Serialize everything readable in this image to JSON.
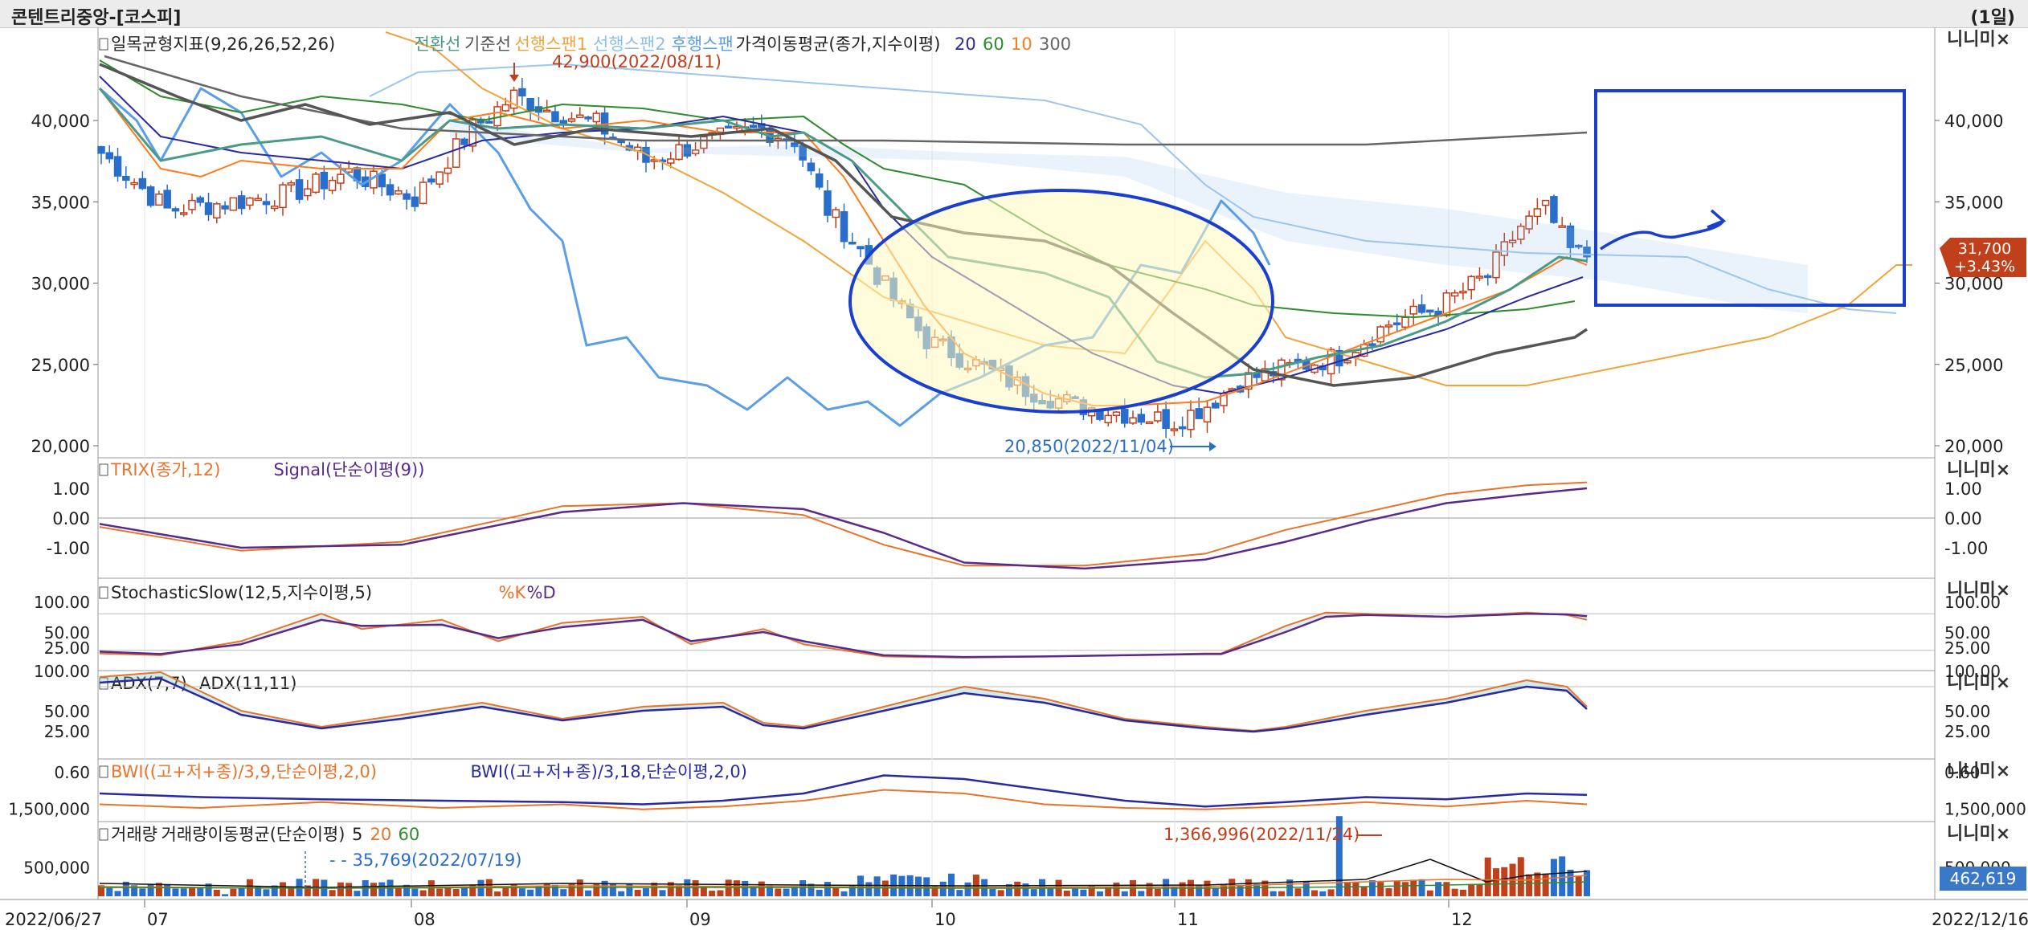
{
  "window": {
    "title": "콘텐트리중앙-[코스피]",
    "period": "(1일)"
  },
  "dates": {
    "start": "2022/06/27",
    "end": "2022/12/16",
    "months": [
      "07",
      "08",
      "09",
      "10",
      "11",
      "12"
    ]
  },
  "panel_controls": "니니미×",
  "price_panel": {
    "legend": [
      {
        "text": "일목균형지표(9,26,26,52,26)",
        "color": "#222222"
      },
      {
        "text": "전환선",
        "color": "#4a9a8a"
      },
      {
        "text": "기준선",
        "color": "#555555"
      },
      {
        "text": "선행스팬1",
        "color": "#f3a33a"
      },
      {
        "text": "선행스팬2",
        "color": "#8fbfe8"
      },
      {
        "text": "후행스팬",
        "color": "#5a9ee6"
      },
      {
        "text": "가격이동평균(종가,지수이평)",
        "color": "#222222"
      },
      {
        "text": "20",
        "color": "#2a2aa0"
      },
      {
        "text": "60",
        "color": "#2e8b2e"
      },
      {
        "text": "10",
        "color": "#ff7a1a"
      },
      {
        "text": "300",
        "color": "#666666"
      }
    ],
    "annotations": {
      "high": "42,900(2022/08/11)",
      "low": "20,850(2022/11/04)"
    },
    "current": {
      "price": "31,700",
      "change": "+3.43%",
      "color": "#c0401c"
    },
    "y_ticks": [
      "40,000",
      "35,000",
      "30,000",
      "25,000",
      "20,000"
    ]
  },
  "trix_panel": {
    "legend": [
      {
        "text": "TRIX(종가,12)",
        "color": "#e8732a"
      },
      {
        "text": "Signal(단순이평(9))",
        "color": "#5a2a8a"
      }
    ],
    "y_ticks": [
      "1.00",
      "0.00",
      "-1.00"
    ]
  },
  "stoch_panel": {
    "legend": [
      {
        "text": "StochasticSlow(12,5,지수이평,5)",
        "color": "#222222"
      },
      {
        "text": "%K",
        "color": "#e8732a"
      },
      {
        "text": "%D",
        "color": "#5a2a8a"
      }
    ],
    "y_ticks": [
      "100.00",
      "50.00",
      "25.00"
    ]
  },
  "adx_panel": {
    "legend": [
      {
        "text": "ADX(7,7)",
        "color": "#222222"
      },
      {
        "text": "ADX(11,11)",
        "color": "#222222"
      }
    ],
    "y_ticks": [
      "100.00",
      "50.00",
      "25.00"
    ]
  },
  "bwi_panel": {
    "legend": [
      {
        "text": "BWI((고+저+종)/3,9,단순이평,2,0)",
        "color": "#e8732a"
      },
      {
        "text": "BWI((고+저+종)/3,18,단순이평,2,0)",
        "color": "#2a2aa0"
      }
    ],
    "y_ticks": [
      "0.60"
    ]
  },
  "volume_panel": {
    "legend": [
      {
        "text": "거래량",
        "color": "#222222"
      },
      {
        "text": "거래량이동평균(단순이평)",
        "color": "#222222"
      },
      {
        "text": "5",
        "color": "#222222"
      },
      {
        "text": "20",
        "color": "#e8732a"
      },
      {
        "text": "60",
        "color": "#2e8b2e"
      }
    ],
    "annotations": {
      "max": "1,366,996(2022/11/24)",
      "min": "35,769(2022/07/19)"
    },
    "current": "462,619",
    "y_ticks": [
      "1,500,000",
      "500,000"
    ]
  },
  "chart_data": {
    "type": "candlestick",
    "x_range": [
      "2022/06/27",
      "2022/12/16"
    ],
    "price_ylim": [
      20000,
      45000
    ],
    "key_points": [
      {
        "date": "2022/06/27",
        "close": 38000
      },
      {
        "date": "2022/07/05",
        "close": 34000
      },
      {
        "date": "2022/07/20",
        "close": 35500
      },
      {
        "date": "2022/08/11",
        "high": 42900,
        "close": 40500
      },
      {
        "date": "2022/08/25",
        "close": 37500
      },
      {
        "date": "2022/09/07",
        "close": 39500
      },
      {
        "date": "2022/09/20",
        "close": 33000
      },
      {
        "date": "2022/10/04",
        "close": 26500
      },
      {
        "date": "2022/10/20",
        "close": 22500
      },
      {
        "date": "2022/11/04",
        "low": 20850,
        "close": 21500
      },
      {
        "date": "2022/11/15",
        "close": 24500
      },
      {
        "date": "2022/11/24",
        "close": 27500
      },
      {
        "date": "2022/12/07",
        "close": 34500
      },
      {
        "date": "2022/12/16",
        "close": 31700
      }
    ],
    "last_close": 31700,
    "last_change_pct": 3.43,
    "volume_max": 1366996,
    "volume_min": 35769,
    "volume_last": 462619
  }
}
